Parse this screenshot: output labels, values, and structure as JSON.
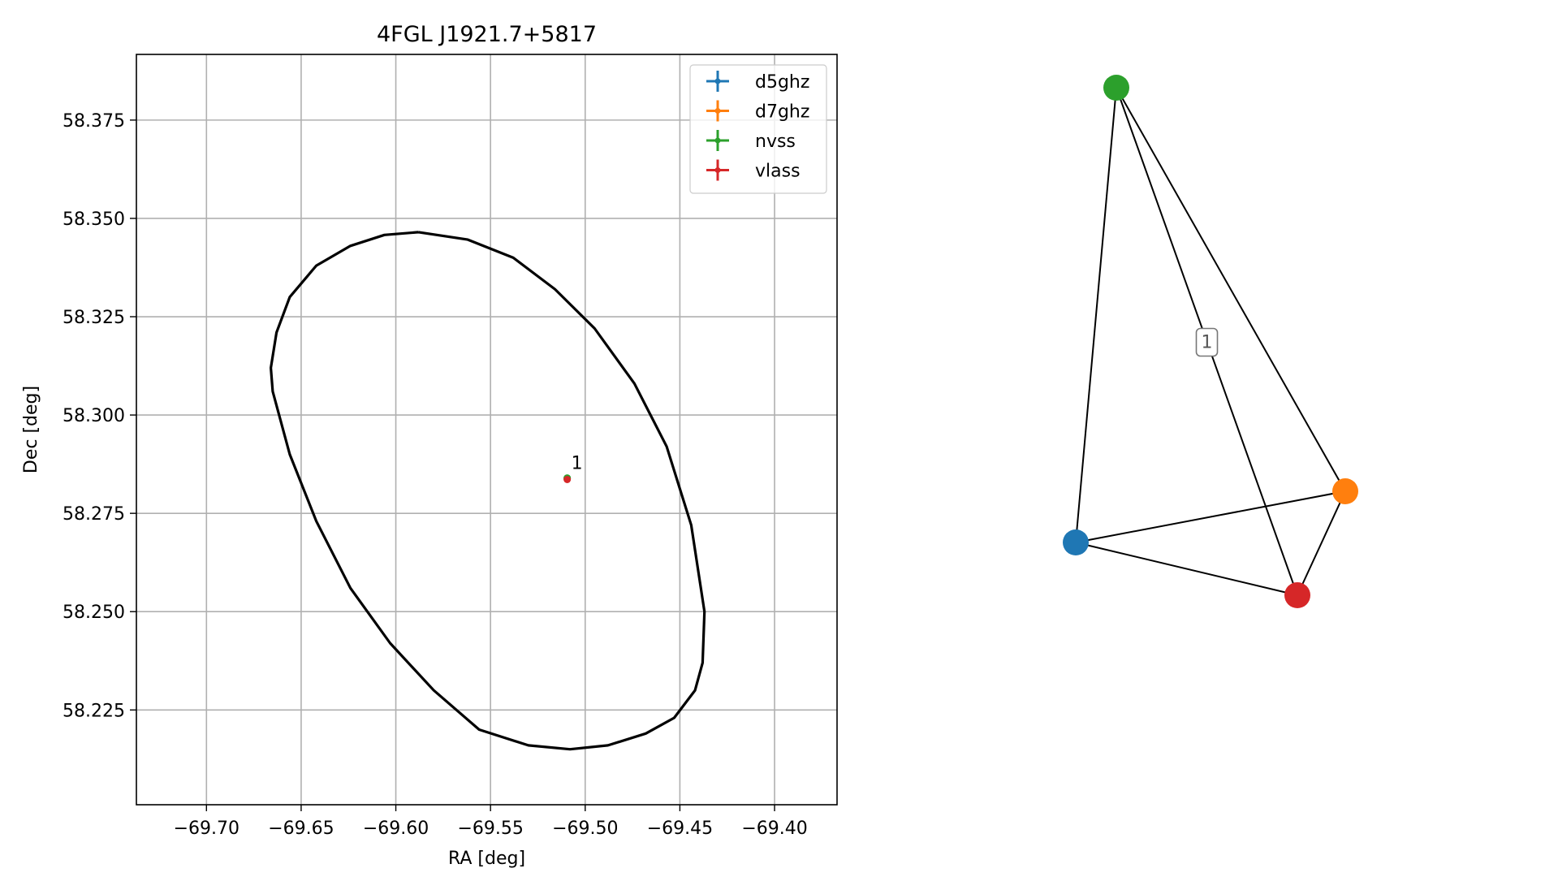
{
  "chart_data": [
    {
      "type": "scatter",
      "title": "4FGL J1921.7+5817",
      "xlabel": "RA [deg]",
      "ylabel": "Dec [deg]",
      "xlim": [
        -69.737,
        -69.367
      ],
      "ylim": [
        58.2009,
        58.3917
      ],
      "grid": true,
      "xticks": [
        -69.7,
        -69.65,
        -69.6,
        -69.55,
        -69.5,
        -69.45,
        -69.4
      ],
      "xtick_labels": [
        "−69.70",
        "−69.65",
        "−69.60",
        "−69.55",
        "−69.50",
        "−69.45",
        "−69.40"
      ],
      "yticks": [
        58.225,
        58.25,
        58.275,
        58.3,
        58.325,
        58.35,
        58.375
      ],
      "ytick_labels": [
        "58.225",
        "58.250",
        "58.275",
        "58.300",
        "58.325",
        "58.350",
        "58.375"
      ],
      "legend_position": "upper right",
      "series": [
        {
          "name": "d5ghz",
          "color": "#1f77b4",
          "points": [
            {
              "x": -69.5095,
              "y": 58.2838
            }
          ]
        },
        {
          "name": "d7ghz",
          "color": "#ff7f0e",
          "points": [
            {
              "x": -69.5095,
              "y": 58.2838
            }
          ]
        },
        {
          "name": "nvss",
          "color": "#2ca02c",
          "points": [
            {
              "x": -69.5095,
              "y": 58.284
            }
          ]
        },
        {
          "name": "vlass",
          "color": "#d62728",
          "points": [
            {
              "x": -69.5095,
              "y": 58.2836
            }
          ]
        }
      ],
      "annotations": [
        {
          "text": "1",
          "x": -69.5095,
          "y": 58.2838
        }
      ],
      "ellipse": {
        "color": "#000000",
        "points": [
          [
            -69.588,
            58.3465
          ],
          [
            -69.562,
            58.3446
          ],
          [
            -69.538,
            58.34
          ],
          [
            -69.516,
            58.332
          ],
          [
            -69.495,
            58.322
          ],
          [
            -69.474,
            58.308
          ],
          [
            -69.457,
            58.292
          ],
          [
            -69.444,
            58.272
          ],
          [
            -69.437,
            58.25
          ],
          [
            -69.438,
            58.237
          ],
          [
            -69.442,
            58.23
          ],
          [
            -69.453,
            58.223
          ],
          [
            -69.468,
            58.219
          ],
          [
            -69.488,
            58.216
          ],
          [
            -69.508,
            58.215
          ],
          [
            -69.53,
            58.216
          ],
          [
            -69.556,
            58.22
          ],
          [
            -69.58,
            58.23
          ],
          [
            -69.603,
            58.242
          ],
          [
            -69.624,
            58.256
          ],
          [
            -69.642,
            58.273
          ],
          [
            -69.656,
            58.29
          ],
          [
            -69.665,
            58.306
          ],
          [
            -69.666,
            58.312
          ],
          [
            -69.663,
            58.321
          ],
          [
            -69.656,
            58.33
          ],
          [
            -69.642,
            58.338
          ],
          [
            -69.624,
            58.343
          ],
          [
            -69.606,
            58.3458
          ],
          [
            -69.588,
            58.3465
          ]
        ]
      }
    },
    {
      "type": "network",
      "nodes": [
        {
          "id": "d5ghz",
          "color": "#1f77b4"
        },
        {
          "id": "d7ghz",
          "color": "#ff7f0e"
        },
        {
          "id": "nvss",
          "color": "#2ca02c"
        },
        {
          "id": "vlass",
          "color": "#d62728"
        }
      ],
      "edges": [
        [
          "nvss",
          "d5ghz"
        ],
        [
          "nvss",
          "d7ghz"
        ],
        [
          "nvss",
          "vlass"
        ],
        [
          "d5ghz",
          "d7ghz"
        ],
        [
          "d5ghz",
          "vlass"
        ],
        [
          "d7ghz",
          "vlass"
        ]
      ],
      "edge_label": "1"
    }
  ]
}
